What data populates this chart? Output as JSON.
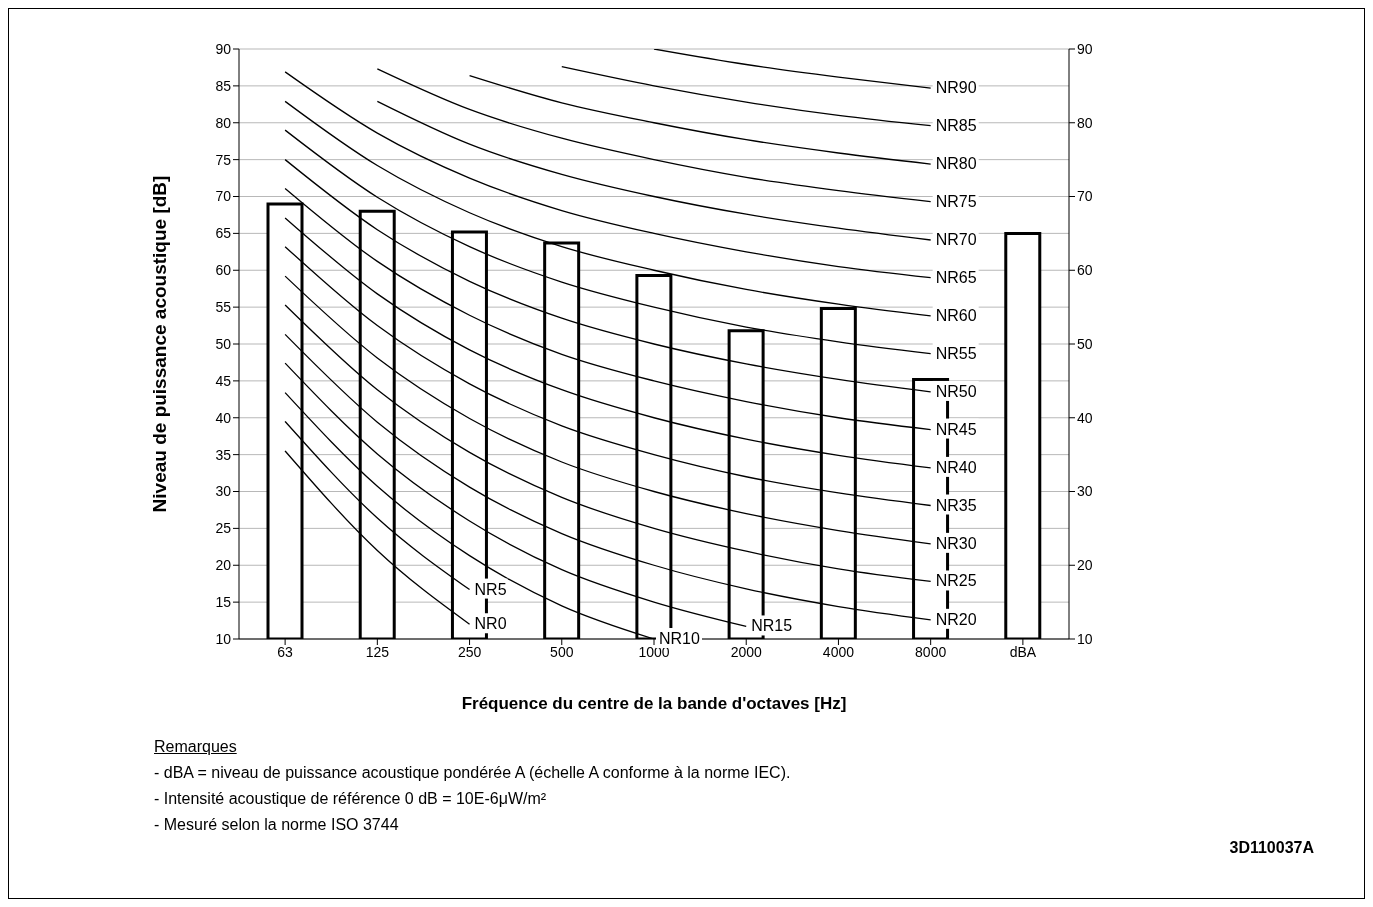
{
  "chart_data": {
    "type": "bar",
    "xlabel": "Fréquence du centre de la bande d'octaves [Hz]",
    "ylabel": "Niveau de puissance acoustique [dB]",
    "categories": [
      "63",
      "125",
      "250",
      "500",
      "1000",
      "2000",
      "4000",
      "8000",
      "dBA"
    ],
    "ylim": [
      10,
      90
    ],
    "yticks": [
      10,
      15,
      20,
      25,
      30,
      35,
      40,
      45,
      50,
      55,
      60,
      65,
      70,
      75,
      80,
      85,
      90
    ],
    "y2lim": [
      10,
      90
    ],
    "y2ticks": [
      10,
      20,
      30,
      40,
      50,
      60,
      70,
      80,
      90
    ],
    "grid": "y",
    "legend": false,
    "marker": "none",
    "line_style": "solid",
    "series": [
      {
        "color": "#ffffff",
        "values": [
          69,
          68,
          65.2,
          63.7,
          59.3,
          51.8,
          54.8,
          45.2,
          65
        ]
      },
      {
        "type": "line",
        "name": "NR0",
        "color": "#000000",
        "values": [
          35.5,
          22,
          12,
          null,
          null,
          null,
          null,
          null,
          null
        ]
      },
      {
        "type": "line",
        "name": "NR5",
        "color": "#000000",
        "values": [
          39.5,
          26.4,
          16.7,
          null,
          null,
          null,
          null,
          null,
          null
        ]
      },
      {
        "type": "line",
        "name": "NR10",
        "color": "#000000",
        "values": [
          43.4,
          30.7,
          21.3,
          14.5,
          10,
          null,
          null,
          null,
          null
        ]
      },
      {
        "type": "line",
        "name": "NR15",
        "color": "#000000",
        "values": [
          47.4,
          35.1,
          26.0,
          19.4,
          15,
          11.7,
          null,
          null,
          null
        ]
      },
      {
        "type": "line",
        "name": "NR20",
        "color": "#000000",
        "values": [
          51.3,
          39.4,
          30.6,
          24.3,
          20,
          16.8,
          14.4,
          12.6,
          null
        ]
      },
      {
        "type": "line",
        "name": "NR25",
        "color": "#000000",
        "values": [
          55.3,
          43.8,
          35.3,
          29.2,
          25,
          21.9,
          19.5,
          17.8,
          null
        ]
      },
      {
        "type": "line",
        "name": "NR30",
        "color": "#000000",
        "values": [
          59.2,
          48.1,
          39.9,
          34.0,
          30,
          27.0,
          24.7,
          22.9,
          null
        ]
      },
      {
        "type": "line",
        "name": "NR35",
        "color": "#000000",
        "values": [
          63.2,
          52.5,
          44.6,
          38.9,
          35,
          32.0,
          29.8,
          28.1,
          null
        ]
      },
      {
        "type": "line",
        "name": "NR40",
        "color": "#000000",
        "values": [
          67.1,
          56.8,
          49.2,
          43.8,
          40,
          37.1,
          34.9,
          33.2,
          null
        ]
      },
      {
        "type": "line",
        "name": "NR45",
        "color": "#000000",
        "values": [
          71.1,
          61.2,
          53.9,
          48.6,
          45,
          42.2,
          40.0,
          38.4,
          null
        ]
      },
      {
        "type": "line",
        "name": "NR50",
        "color": "#000000",
        "values": [
          75.0,
          65.5,
          58.5,
          53.5,
          50,
          47.3,
          45.2,
          43.5,
          null
        ]
      },
      {
        "type": "line",
        "name": "NR55",
        "color": "#000000",
        "values": [
          79.0,
          69.9,
          63.2,
          58.4,
          55,
          52.3,
          50.3,
          48.7,
          null
        ]
      },
      {
        "type": "line",
        "name": "NR60",
        "color": "#000000",
        "values": [
          82.9,
          74.2,
          67.8,
          63.2,
          60,
          57.4,
          55.4,
          53.8,
          null
        ]
      },
      {
        "type": "line",
        "name": "NR65",
        "color": "#000000",
        "values": [
          86.9,
          78.6,
          72.5,
          68.1,
          65,
          62.5,
          60.5,
          59.0,
          null
        ]
      },
      {
        "type": "line",
        "name": "NR70",
        "color": "#000000",
        "values": [
          null,
          82.9,
          77.1,
          73.0,
          70,
          67.6,
          65.7,
          64.1,
          null
        ]
      },
      {
        "type": "line",
        "name": "NR75",
        "color": "#000000",
        "values": [
          null,
          87.3,
          81.8,
          77.9,
          75,
          72.6,
          70.8,
          69.3,
          null
        ]
      },
      {
        "type": "line",
        "name": "NR80",
        "color": "#000000",
        "values": [
          null,
          null,
          86.4,
          82.7,
          80,
          77.7,
          75.9,
          74.4,
          null
        ]
      },
      {
        "type": "line",
        "name": "NR85",
        "color": "#000000",
        "values": [
          null,
          null,
          null,
          87.6,
          85,
          82.8,
          81.0,
          79.6,
          null
        ]
      },
      {
        "type": "line",
        "name": "NR90",
        "color": "#000000",
        "values": [
          null,
          null,
          null,
          null,
          90,
          87.9,
          86.2,
          84.7,
          null
        ]
      }
    ],
    "annotations": [
      "Remarques",
      "- dBA = niveau de puissance acoustique pondérée A (échelle A conforme à la norme IEC).",
      "- Intensité acoustique de référence 0 dB = 10E-6μW/m²",
      "- Mesuré selon la norme ISO 3744",
      "3D110037A"
    ]
  }
}
